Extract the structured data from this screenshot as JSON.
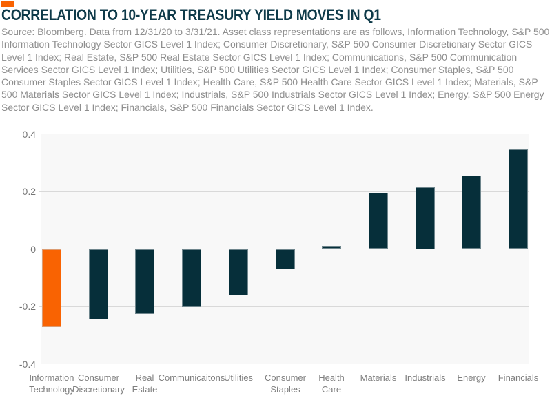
{
  "page": {
    "accent_color": "#f96302",
    "title": "CORRELATION TO 10-YEAR TREASURY YIELD MOVES IN Q1",
    "source_text": "Source: Bloomberg. Data from 12/31/20 to 3/31/21. Asset class representations are as follows, Information Technology, S&P 500 Information Technology Sector GICS Level 1 Index; Consumer Discretionary, S&P 500 Consumer Discretionary Sector GICS Level 1 Index; Real Estate, S&P 500 Real Estate Sector GICS Level 1 Index; Communications, S&P 500 Communication Services Sector GICS Level 1 Index; Utilities, S&P 500 Utilities Sector GICS Level 1 Index; Consumer Staples, S&P 500 Consumer Staples Sector GICS Level 1 Index; Health Care, S&P 500 Health Care Sector GICS Level 1 Index; Materials, S&P 500 Materials Sector GICS Level 1 Index; Industrials, S&P 500 Industrials Sector GICS Level 1 Index; Energy, S&P 500 Energy Sector GICS Level 1 Index; Financials, S&P 500 Financials Sector GICS Level 1 Index."
  },
  "chart_data": {
    "type": "bar",
    "title": "CORRELATION TO 10-YEAR TREASURY YIELD MOVES IN Q1",
    "categories": [
      "Information Technology",
      "Consumer Discretionary",
      "Real Estate",
      "Communicaitons",
      "Utilities",
      "Consumer Staples",
      "Health Care",
      "Materials",
      "Industrials",
      "Energy",
      "Financials"
    ],
    "category_label_lines": [
      [
        "Information",
        "Technology"
      ],
      [
        "Consumer",
        "Discretionary"
      ],
      [
        "Real",
        "Estate"
      ],
      [
        "Communicaitons"
      ],
      [
        "Utilities"
      ],
      [
        "Consumer",
        "Staples"
      ],
      [
        "Health",
        "Care"
      ],
      [
        "Materials"
      ],
      [
        "Industrials"
      ],
      [
        "Energy"
      ],
      [
        "Financials"
      ]
    ],
    "values": [
      -0.27,
      -0.245,
      -0.225,
      -0.2,
      -0.16,
      -0.07,
      0.01,
      0.195,
      0.215,
      0.255,
      0.345
    ],
    "xlabel": "",
    "ylabel": "",
    "ylim": [
      -0.4,
      0.4
    ],
    "yticks": [
      0.4,
      0.2,
      0,
      -0.2,
      -0.4
    ],
    "ytick_labels": [
      "0.4",
      "0.2",
      "0",
      "-0.2",
      "-0.4"
    ],
    "grid": true,
    "legend": false,
    "plot_background": "#f8f8f8",
    "gridline_color": "#d9d9d9",
    "bar_colors": {
      "highlight": "#f96302",
      "default": "#062f3a"
    },
    "highlight_index": 0
  }
}
